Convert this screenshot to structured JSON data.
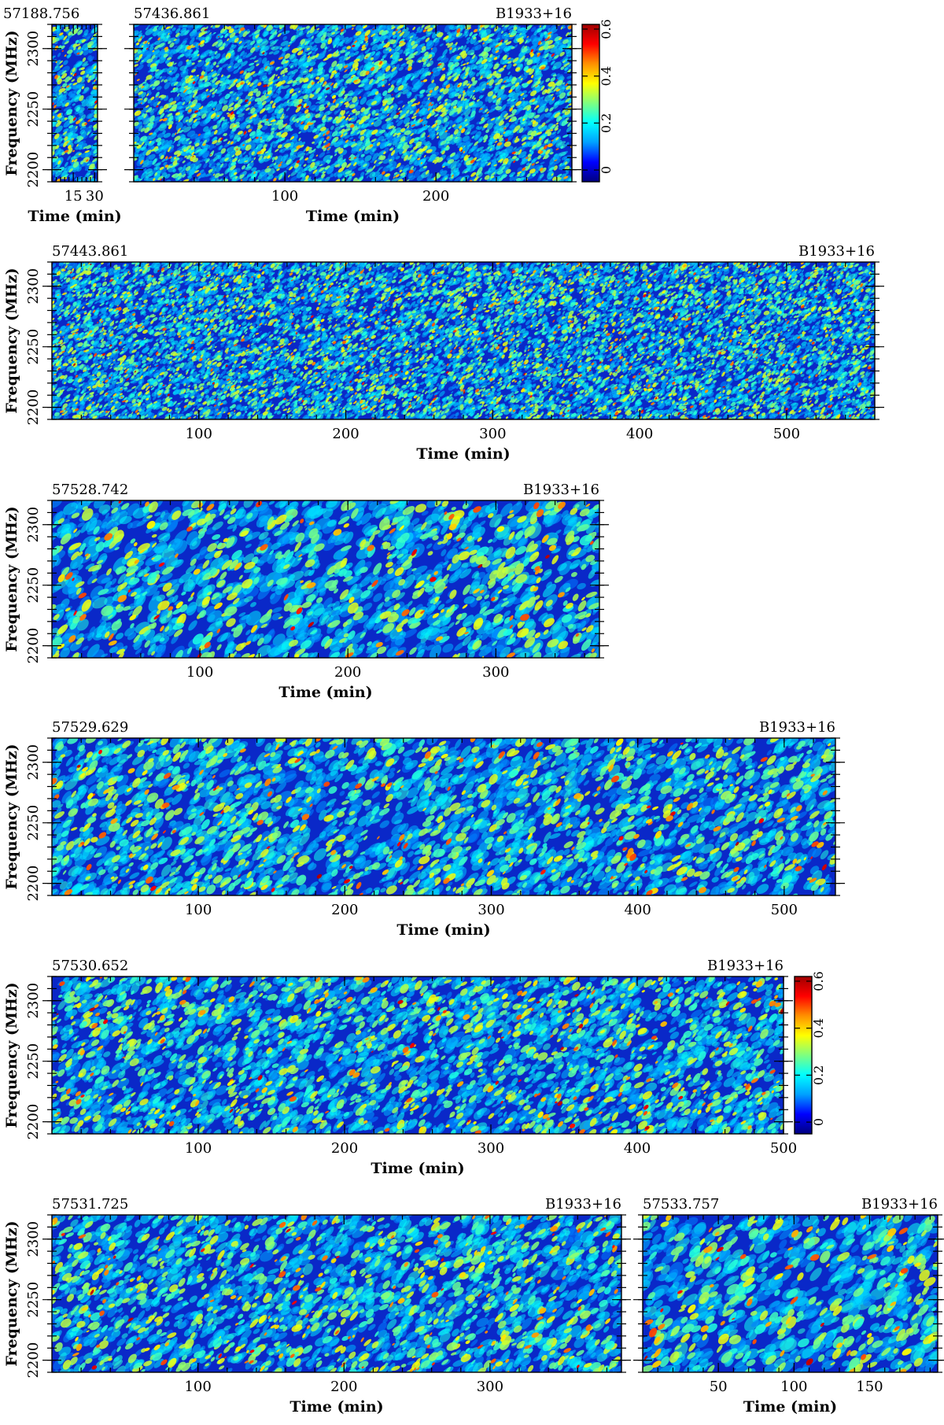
{
  "source_name": "B1933+16",
  "chart_data": [
    {
      "type": "heatmap",
      "mjd": "57188.756",
      "source": "",
      "xlabel": "Time (min)",
      "ylabel": "Frequency (MHz)",
      "xlim": [
        0,
        32
      ],
      "ylim": [
        2190,
        2320
      ],
      "xticks": [
        15,
        30
      ],
      "yticks": [
        2200,
        2250,
        2300
      ],
      "blob_scale": 0.55
    },
    {
      "type": "heatmap",
      "mjd": "57436.861",
      "source": "B1933+16",
      "xlabel": "Time (min)",
      "ylabel": "",
      "xlim": [
        0,
        290
      ],
      "ylim": [
        2190,
        2320
      ],
      "xticks": [
        100,
        200
      ],
      "yticks": [
        2200,
        2250,
        2300
      ],
      "blob_scale": 0.55
    },
    {
      "type": "heatmap",
      "mjd": "57443.861",
      "source": "B1933+16",
      "xlabel": "Time (min)",
      "ylabel": "Frequency (MHz)",
      "xlim": [
        0,
        560
      ],
      "ylim": [
        2190,
        2320
      ],
      "xticks": [
        100,
        200,
        300,
        400,
        500
      ],
      "yticks": [
        2200,
        2250,
        2300
      ],
      "blob_scale": 0.45
    },
    {
      "type": "heatmap",
      "mjd": "57528.742",
      "source": "B1933+16",
      "xlabel": "Time (min)",
      "ylabel": "Frequency (MHz)",
      "xlim": [
        0,
        370
      ],
      "ylim": [
        2190,
        2320
      ],
      "xticks": [
        100,
        200,
        300
      ],
      "yticks": [
        2200,
        2250,
        2300
      ],
      "blob_scale": 1.0
    },
    {
      "type": "heatmap",
      "mjd": "57529.629",
      "source": "B1933+16",
      "xlabel": "Time (min)",
      "ylabel": "Frequency (MHz)",
      "xlim": [
        0,
        535
      ],
      "ylim": [
        2190,
        2320
      ],
      "xticks": [
        100,
        200,
        300,
        400,
        500
      ],
      "yticks": [
        2200,
        2250,
        2300
      ],
      "blob_scale": 0.9
    },
    {
      "type": "heatmap",
      "mjd": "57530.652",
      "source": "B1933+16",
      "xlabel": "Time (min)",
      "ylabel": "Frequency (MHz)",
      "xlim": [
        0,
        500
      ],
      "ylim": [
        2190,
        2320
      ],
      "xticks": [
        100,
        200,
        300,
        400,
        500
      ],
      "yticks": [
        2200,
        2250,
        2300
      ],
      "blob_scale": 0.8
    },
    {
      "type": "heatmap",
      "mjd": "57531.725",
      "source": "B1933+16",
      "xlabel": "Time (min)",
      "ylabel": "Frequency (MHz)",
      "xlim": [
        0,
        390
      ],
      "ylim": [
        2190,
        2320
      ],
      "xticks": [
        100,
        200,
        300
      ],
      "yticks": [
        2200,
        2250,
        2300
      ],
      "blob_scale": 0.85
    },
    {
      "type": "heatmap",
      "mjd": "57533.757",
      "source": "B1933+16",
      "xlabel": "Time (min)",
      "ylabel": "",
      "xlim": [
        0,
        195
      ],
      "ylim": [
        2190,
        2320
      ],
      "xticks": [
        50,
        100,
        150
      ],
      "yticks": [
        2200,
        2250,
        2300
      ],
      "blob_scale": 1.05
    }
  ],
  "colorbar": {
    "ticks": [
      "0",
      "0.2",
      "0.4",
      "0.6"
    ],
    "tick_values": [
      0,
      0.2,
      0.4,
      0.6
    ],
    "range": [
      -0.05,
      0.62
    ],
    "colors": [
      "#00007f",
      "#0000ff",
      "#00a0ff",
      "#00ffff",
      "#7fff7f",
      "#ffff00",
      "#ff9000",
      "#ff0000",
      "#9f0000"
    ]
  },
  "background_color": "#0a28c8"
}
